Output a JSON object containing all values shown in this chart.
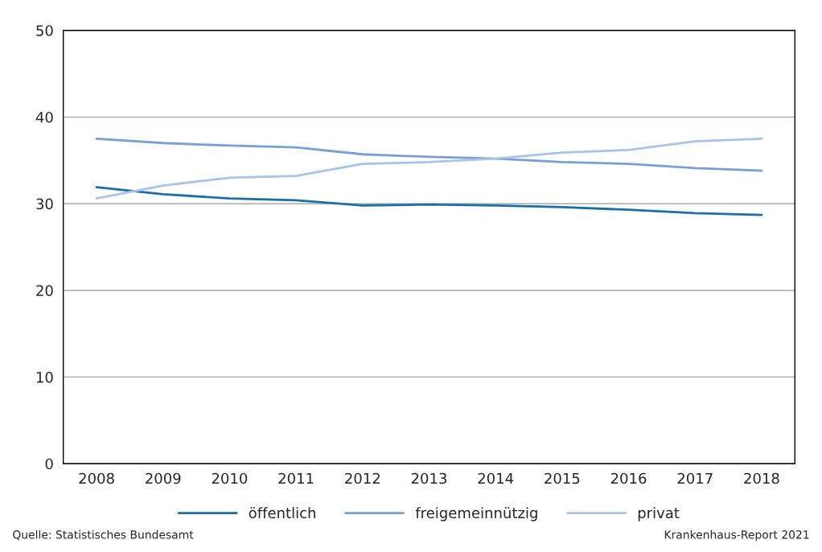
{
  "chart_data": {
    "type": "line",
    "categories": [
      "2008",
      "2009",
      "2010",
      "2011",
      "2012",
      "2013",
      "2014",
      "2015",
      "2016",
      "2017",
      "2018"
    ],
    "series": [
      {
        "name": "öffentlich",
        "color": "#1a6fa8",
        "values": [
          31.9,
          31.1,
          30.6,
          30.4,
          29.8,
          29.9,
          29.8,
          29.6,
          29.3,
          28.9,
          28.7
        ]
      },
      {
        "name": "freigemeinnützig",
        "color": "#7a9fd4",
        "values": [
          37.5,
          37.0,
          36.7,
          36.5,
          35.7,
          35.4,
          35.2,
          34.8,
          34.6,
          34.1,
          33.8
        ]
      },
      {
        "name": "privat",
        "color": "#a9c4e8",
        "values": [
          30.6,
          32.1,
          33.0,
          33.2,
          34.6,
          34.8,
          35.2,
          35.9,
          36.2,
          37.2,
          37.5
        ]
      }
    ],
    "ylim": [
      0,
      50
    ],
    "yticks": [
      0,
      10,
      20,
      30,
      40,
      50
    ],
    "grid": "y",
    "legend": "bottom",
    "line_style": "solid",
    "marker": "none",
    "annotations": [
      "Quelle: Statistisches Bundesamt",
      "Krankenhaus-Report 2021"
    ]
  }
}
